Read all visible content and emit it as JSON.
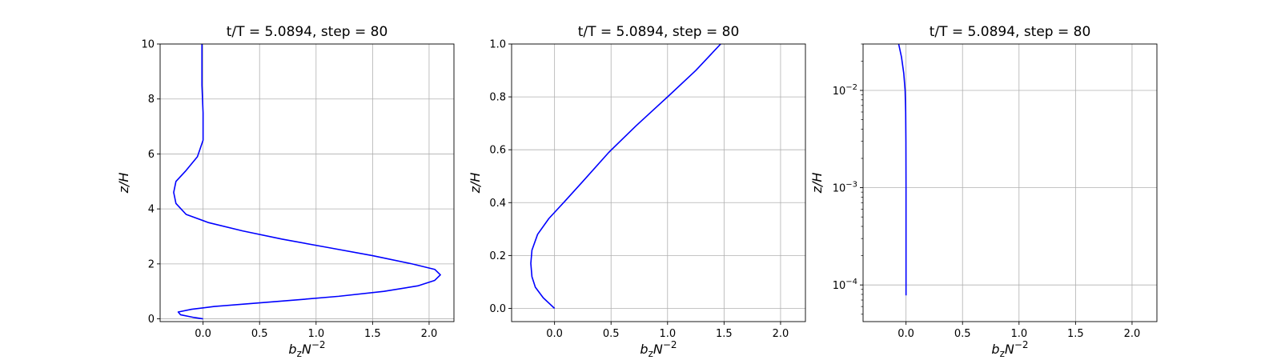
{
  "chart_data": [
    {
      "type": "line",
      "title": "t/T = 5.0894, step = 80",
      "xlabel": "b_zN^{-2}",
      "ylabel": "z/H",
      "xlim": [
        -0.38,
        2.22
      ],
      "ylim": [
        -0.1,
        10
      ],
      "xticks": [
        0.0,
        0.5,
        1.0,
        1.5,
        2.0
      ],
      "xtick_labels": [
        "0.0",
        "0.5",
        "1.0",
        "1.5",
        "2.0"
      ],
      "yticks": [
        0,
        2,
        4,
        6,
        8,
        10
      ],
      "ytick_labels": [
        "0",
        "2",
        "4",
        "6",
        "8",
        "10"
      ],
      "yscale": "linear",
      "grid": true,
      "color": "#0000ff",
      "series": [
        {
          "x": [
            0.0,
            -0.08,
            -0.2,
            -0.22,
            -0.1,
            0.1,
            0.4,
            0.8,
            1.2,
            1.6,
            1.9,
            2.05,
            2.1,
            2.05,
            1.85,
            1.5,
            1.1,
            0.7,
            0.35,
            0.05,
            -0.15,
            -0.24,
            -0.26,
            -0.24,
            -0.15,
            -0.05,
            0.0,
            0.0,
            -0.01,
            -0.01
          ],
          "y": [
            0.0,
            0.05,
            0.15,
            0.25,
            0.35,
            0.45,
            0.55,
            0.68,
            0.82,
            1.0,
            1.2,
            1.4,
            1.6,
            1.8,
            2.0,
            2.3,
            2.6,
            2.9,
            3.2,
            3.5,
            3.8,
            4.2,
            4.6,
            5.0,
            5.4,
            5.9,
            6.5,
            7.5,
            8.5,
            10.0
          ]
        }
      ]
    },
    {
      "type": "line",
      "title": "t/T = 5.0894, step = 80",
      "xlabel": "b_zN^{-2}",
      "ylabel": "z/H",
      "xlim": [
        -0.38,
        2.22
      ],
      "ylim": [
        -0.05,
        1.0
      ],
      "xticks": [
        0.0,
        0.5,
        1.0,
        1.5,
        2.0
      ],
      "xtick_labels": [
        "0.0",
        "0.5",
        "1.0",
        "1.5",
        "2.0"
      ],
      "yticks": [
        0.0,
        0.2,
        0.4,
        0.6,
        0.8,
        1.0
      ],
      "ytick_labels": [
        "0.0",
        "0.2",
        "0.4",
        "0.6",
        "0.8",
        "1.0"
      ],
      "yscale": "linear",
      "grid": true,
      "color": "#0000ff",
      "series": [
        {
          "x": [
            0.0,
            -0.1,
            -0.17,
            -0.2,
            -0.21,
            -0.2,
            -0.15,
            -0.05,
            0.08,
            0.25,
            0.48,
            0.72,
            1.0,
            1.25,
            1.47
          ],
          "y": [
            0.0,
            0.04,
            0.08,
            0.12,
            0.17,
            0.22,
            0.28,
            0.34,
            0.4,
            0.48,
            0.59,
            0.69,
            0.8,
            0.9,
            1.0
          ]
        }
      ]
    },
    {
      "type": "line",
      "title": "t/T = 5.0894, step = 80",
      "xlabel": "b_zN^{-2}",
      "ylabel": "z/H",
      "xlim": [
        -0.38,
        2.22
      ],
      "ylim": [
        4.2e-05,
        0.03
      ],
      "xticks": [
        0.0,
        0.5,
        1.0,
        1.5,
        2.0
      ],
      "xtick_labels": [
        "0.0",
        "0.5",
        "1.0",
        "1.5",
        "2.0"
      ],
      "yticks": [
        0.0001,
        0.001,
        0.01
      ],
      "ytick_labels": [
        [
          "10",
          "−4"
        ],
        [
          "10",
          "−3"
        ],
        [
          "10",
          "−2"
        ]
      ],
      "yscale": "log",
      "grid": true,
      "color": "#0000ff",
      "series": [
        {
          "x": [
            0.0,
            0.0,
            0.0,
            -0.001,
            -0.003,
            -0.008,
            -0.02,
            -0.04,
            -0.065
          ],
          "y": [
            7.8e-05,
            0.0003,
            0.001,
            0.003,
            0.006,
            0.01,
            0.015,
            0.022,
            0.03
          ]
        }
      ]
    }
  ]
}
